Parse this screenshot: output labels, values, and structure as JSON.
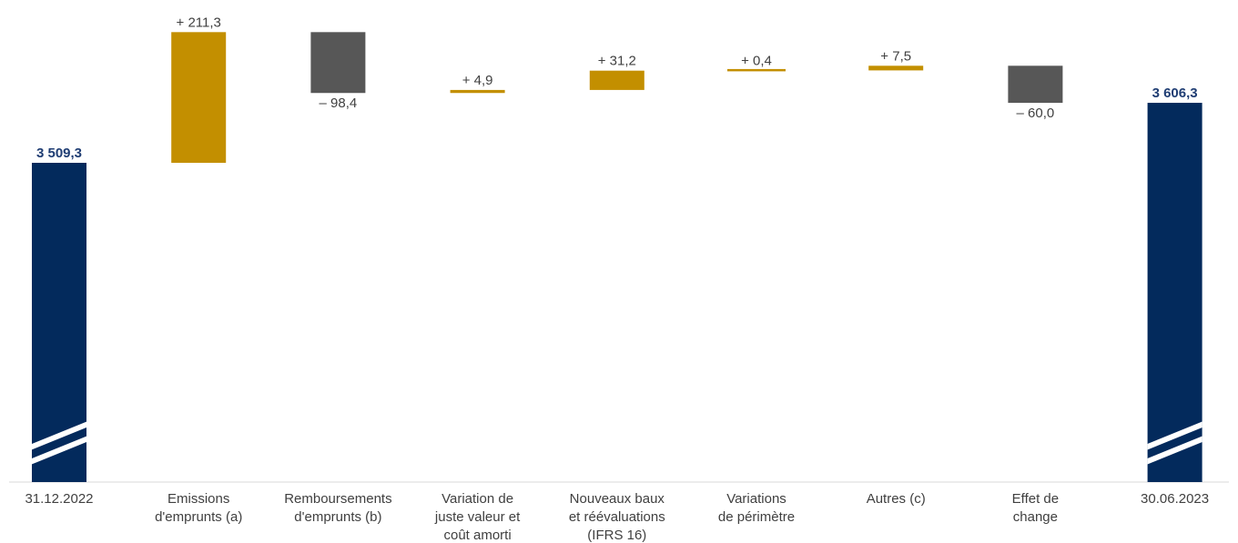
{
  "chart_data": {
    "type": "bar",
    "subtype": "waterfall",
    "broken_axis": true,
    "categories": [
      [
        "31.12.2022"
      ],
      [
        "Emissions",
        "d'emprunts (a)"
      ],
      [
        "Remboursements",
        "d'emprunts (b)"
      ],
      [
        "Variation de",
        "juste valeur et",
        "coût amorti"
      ],
      [
        "Nouveaux baux",
        "et réévaluations",
        "(IFRS 16)"
      ],
      [
        "Variations",
        "de périmètre"
      ],
      [
        "Autres (c)"
      ],
      [
        "Effet de",
        "change"
      ],
      [
        "30.06.2023"
      ]
    ],
    "steps": [
      {
        "kind": "total",
        "value": 3509.3,
        "label": "3 509,3"
      },
      {
        "kind": "delta",
        "value": 211.3,
        "label": "+ 211,3"
      },
      {
        "kind": "delta",
        "value": -98.4,
        "label": "– 98,4"
      },
      {
        "kind": "delta",
        "value": 4.9,
        "label": "+ 4,9"
      },
      {
        "kind": "delta",
        "value": 31.2,
        "label": "+ 31,2"
      },
      {
        "kind": "delta",
        "value": 0.4,
        "label": "+ 0,4"
      },
      {
        "kind": "delta",
        "value": 7.5,
        "label": "+ 7,5"
      },
      {
        "kind": "delta",
        "value": -60.0,
        "label": "– 60,0"
      },
      {
        "kind": "total",
        "value": 3606.3,
        "label": "3 606,3"
      }
    ],
    "colors": {
      "total": "#032a5c",
      "total_label": "#1f3d73",
      "increase": "#c38f00",
      "decrease": "#575757",
      "axis": "#d9d9d9"
    }
  }
}
